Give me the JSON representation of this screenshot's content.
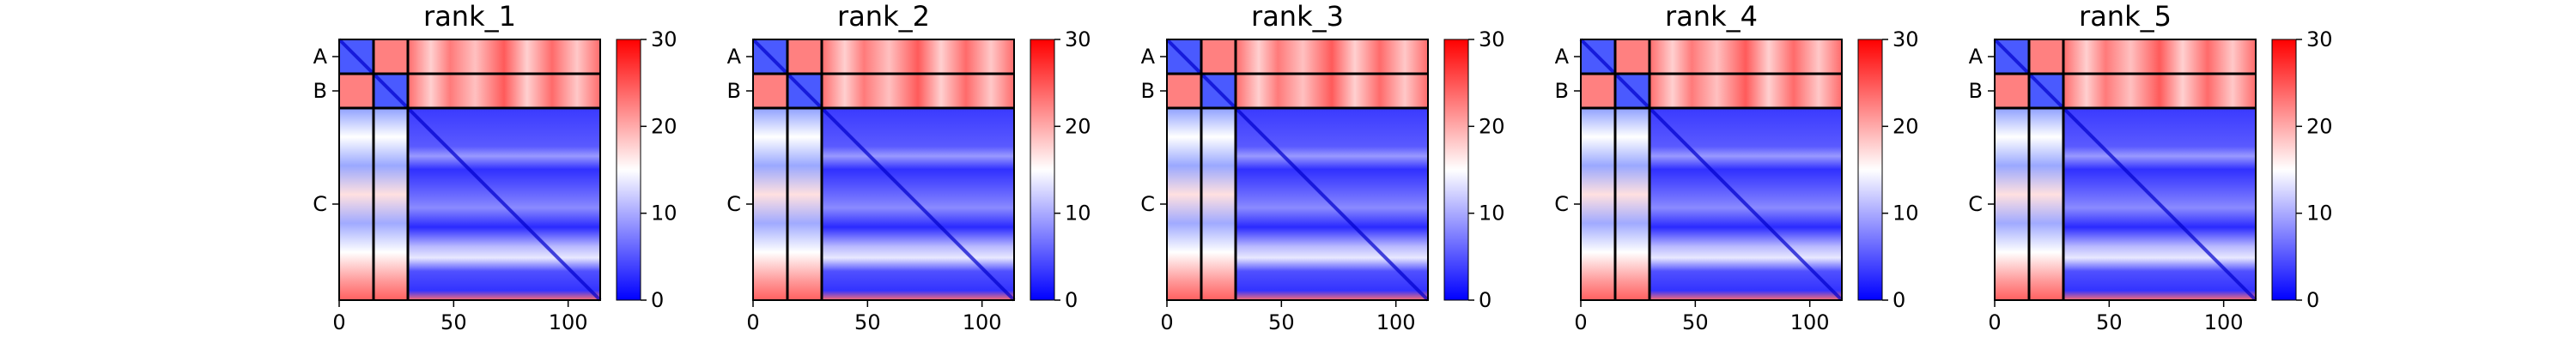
{
  "chart_data": [
    {
      "type": "heatmap",
      "title": "rank_1",
      "chains": [
        "A",
        "B",
        "C"
      ],
      "chain_lengths": [
        15,
        15,
        84
      ],
      "x_ticks": [
        0,
        50,
        100
      ],
      "xlim": [
        0,
        114
      ],
      "colorbar": {
        "ticks": [
          0,
          10,
          20,
          30
        ],
        "range": [
          0,
          30
        ],
        "colors": [
          "#0000ff",
          "#ffffff",
          "#ff0000"
        ]
      }
    },
    {
      "type": "heatmap",
      "title": "rank_2",
      "chains": [
        "A",
        "B",
        "C"
      ],
      "chain_lengths": [
        15,
        15,
        84
      ],
      "x_ticks": [
        0,
        50,
        100
      ],
      "xlim": [
        0,
        114
      ],
      "colorbar": {
        "ticks": [
          0,
          10,
          20,
          30
        ],
        "range": [
          0,
          30
        ],
        "colors": [
          "#0000ff",
          "#ffffff",
          "#ff0000"
        ]
      }
    },
    {
      "type": "heatmap",
      "title": "rank_3",
      "chains": [
        "A",
        "B",
        "C"
      ],
      "chain_lengths": [
        15,
        15,
        84
      ],
      "x_ticks": [
        0,
        50,
        100
      ],
      "xlim": [
        0,
        114
      ],
      "colorbar": {
        "ticks": [
          0,
          10,
          20,
          30
        ],
        "range": [
          0,
          30
        ],
        "colors": [
          "#0000ff",
          "#ffffff",
          "#ff0000"
        ]
      }
    },
    {
      "type": "heatmap",
      "title": "rank_4",
      "chains": [
        "A",
        "B",
        "C"
      ],
      "chain_lengths": [
        15,
        15,
        84
      ],
      "x_ticks": [
        0,
        50,
        100
      ],
      "xlim": [
        0,
        114
      ],
      "colorbar": {
        "ticks": [
          0,
          10,
          20,
          30
        ],
        "range": [
          0,
          30
        ],
        "colors": [
          "#0000ff",
          "#ffffff",
          "#ff0000"
        ]
      }
    },
    {
      "type": "heatmap",
      "title": "rank_5",
      "chains": [
        "A",
        "B",
        "C"
      ],
      "chain_lengths": [
        15,
        15,
        84
      ],
      "x_ticks": [
        0,
        50,
        100
      ],
      "xlim": [
        0,
        114
      ],
      "colorbar": {
        "ticks": [
          0,
          10,
          20,
          30
        ],
        "range": [
          0,
          30
        ],
        "colors": [
          "#0000ff",
          "#ffffff",
          "#ff0000"
        ]
      }
    }
  ]
}
